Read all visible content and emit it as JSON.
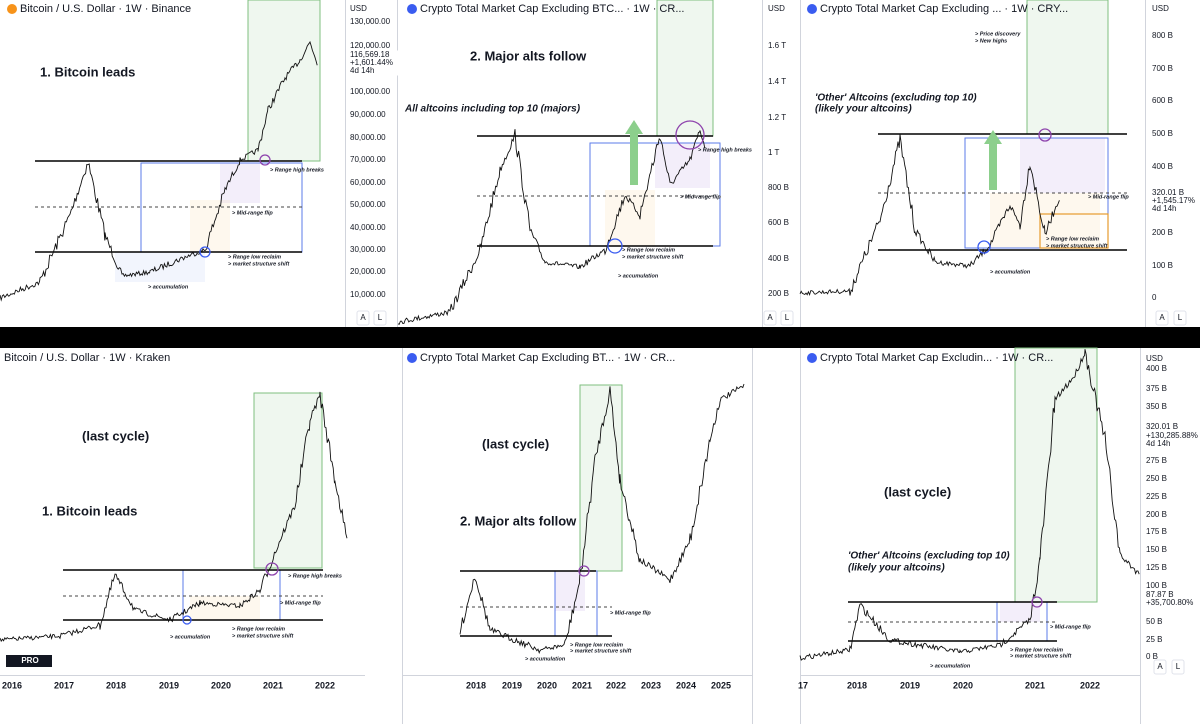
{
  "panels": [
    {
      "title": "Bitcoin / U.S. Dollar · 1W · Binance",
      "price_axis": [
        "USD",
        "130,000.00",
        "120,000.00",
        "116,569.18",
        "+1,601.44%",
        "4d 14h",
        "100,000.00",
        "90,000.00",
        "80,000.00",
        "70,000.00",
        "60,000.00",
        "50,000.00",
        "40,000.00",
        "30,000.00",
        "20,000.00",
        "10,000.00"
      ],
      "annotations": [
        "1. Bitcoin leads",
        "> Range high breaks",
        "> Mid-range flip",
        "> Range low reclaim",
        "> market structure shift",
        "> accumulation"
      ],
      "buttons": [
        "A",
        "L"
      ]
    },
    {
      "title": "Crypto Total Market Cap Excluding BTC... · 1W · CR...",
      "price_axis": [
        "USD",
        "1.6 T",
        "1.4 T",
        "1.2 T",
        "1 T",
        "800 B",
        "600 B",
        "400 B",
        "200 B"
      ],
      "annotations": [
        "2. Major alts follow",
        "All altcoins including top 10 (majors)",
        "> Range high breaks",
        "> Mid-range flip",
        "> Range low reclaim",
        "> market structure shift",
        "> accumulation"
      ],
      "buttons": [
        "A",
        "L"
      ]
    },
    {
      "title": "Crypto Total Market Cap Excluding ... · 1W · CRY...",
      "price_axis": [
        "USD",
        "800 B",
        "700 B",
        "600 B",
        "500 B",
        "400 B",
        "320.01 B",
        "+1,545.17%",
        "4d 14h",
        "200 B",
        "100 B",
        "0"
      ],
      "annotations": [
        "'Other' Altcoins (excluding top 10)",
        "(likely your altcoins)",
        "> Price discovery",
        "> New highs",
        "> Mid-range flip",
        "> Range low reclaim",
        "> market structure shift",
        "> accumulation"
      ],
      "buttons": [
        "A",
        "L"
      ]
    },
    {
      "title": "Bitcoin / U.S. Dollar · 1W · Kraken",
      "annotations": [
        "(last cycle)",
        "1. Bitcoin leads",
        "> Range high breaks",
        "> Mid-range flip",
        "> Range low reclaim",
        "> market structure shift",
        "> accumulation"
      ],
      "time_axis": [
        "2016",
        "2017",
        "2018",
        "2019",
        "2020",
        "2021",
        "2022"
      ],
      "logo": "PRO"
    },
    {
      "title": "Crypto Total Market Cap Excluding BT... · 1W · CR...",
      "annotations": [
        "(last cycle)",
        "2. Major alts follow",
        "> Mid-range flip",
        "> Range low reclaim",
        "> market structure shift",
        "> accumulation"
      ],
      "time_axis": [
        "2018",
        "2019",
        "2020",
        "2021",
        "2022",
        "2023",
        "2024",
        "2025"
      ]
    },
    {
      "title": "Crypto Total Market Cap Excludin... · 1W · CR...",
      "price_axis": [
        "USD",
        "400 B",
        "375 B",
        "350 B",
        "320.01 B",
        "+130,285.88%",
        "4d 14h",
        "275 B",
        "250 B",
        "225 B",
        "200 B",
        "175 B",
        "150 B",
        "125 B",
        "100 B",
        "87.87 B",
        "+35,700.80%",
        "50 B",
        "25 B",
        "0 B"
      ],
      "annotations": [
        "(last cycle)",
        "'Other' Altcoins (excluding top 10)",
        "(likely your altcoins)",
        "> Mid-range flip",
        "> Range low reclaim",
        "> market structure shift",
        "> accumulation"
      ],
      "time_axis": [
        "17",
        "2018",
        "2019",
        "2020",
        "2021",
        "2022"
      ],
      "buttons": [
        "A",
        "L"
      ]
    }
  ]
}
